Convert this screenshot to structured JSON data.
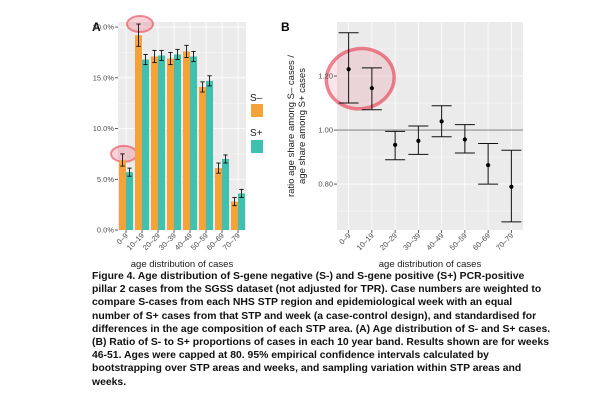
{
  "colors": {
    "s_negative": "#F5A23A",
    "s_positive": "#3FC1B0",
    "panel_bg": "#EBEBEB",
    "grid": "#FFFFFF",
    "point": "#000000",
    "reference_line": "#8C8C8C",
    "highlight": "#E8334A"
  },
  "chart_data": [
    {
      "panel": "A",
      "type": "bar",
      "xlabel": "age distribution of cases",
      "ylabel": "",
      "categories": [
        "0–9",
        "10–19",
        "20–29",
        "30–39",
        "40–49",
        "50–59",
        "60–69",
        "70–79"
      ],
      "ylim": [
        0,
        20.5
      ],
      "yticks": [
        0,
        5,
        10,
        15,
        20
      ],
      "ytick_labels": [
        "0.0%",
        "5.0%",
        "10.0%",
        "15.0%",
        "20.0%"
      ],
      "grid": true,
      "legend_position": "right",
      "series": [
        {
          "name": "S–",
          "color": "#F5A23A",
          "values": [
            6.9,
            19.2,
            17.1,
            16.9,
            17.6,
            14.1,
            6.1,
            2.8
          ],
          "lower": [
            6.3,
            18.1,
            16.5,
            16.3,
            17.0,
            13.6,
            5.6,
            2.4
          ],
          "upper": [
            7.5,
            20.3,
            17.7,
            17.5,
            18.2,
            14.6,
            6.6,
            3.2
          ]
        },
        {
          "name": "S+",
          "color": "#3FC1B0",
          "values": [
            5.7,
            16.8,
            17.2,
            17.3,
            17.1,
            14.7,
            7.0,
            3.6
          ],
          "lower": [
            5.3,
            16.3,
            16.7,
            16.8,
            16.6,
            14.2,
            6.6,
            3.2
          ],
          "upper": [
            6.1,
            17.3,
            17.7,
            17.8,
            17.6,
            15.2,
            7.4,
            4.0
          ]
        }
      ],
      "highlighted_categories": [
        "0–9",
        "10–19"
      ]
    },
    {
      "panel": "B",
      "type": "scatter",
      "xlabel": "age distribution of cases",
      "ylabel_lines": [
        "ratio age share among S– cases /",
        "age share among S+ cases"
      ],
      "categories": [
        "0–9",
        "10–19",
        "20–29",
        "30–39",
        "40–49",
        "50–59",
        "60–69",
        "70–79"
      ],
      "ylim": [
        0.63,
        1.4
      ],
      "yticks": [
        0.8,
        1.0,
        1.2
      ],
      "ytick_labels": [
        "0.80",
        "1.00",
        "1.20"
      ],
      "reference_line": 1.0,
      "grid": true,
      "values": [
        1.225,
        1.155,
        0.945,
        0.96,
        1.032,
        0.965,
        0.87,
        0.79
      ],
      "lower": [
        1.1,
        1.075,
        0.89,
        0.91,
        0.975,
        0.915,
        0.8,
        0.66
      ],
      "upper": [
        1.36,
        1.23,
        0.995,
        1.015,
        1.09,
        1.02,
        0.95,
        0.925
      ],
      "highlighted_categories": [
        "0–9",
        "10–19"
      ]
    }
  ],
  "caption": "Figure 4. Age distribution of S-gene negative (S-) and S-gene positive (S+) PCR-positive pillar 2 cases from the SGSS dataset (not adjusted for TPR). Case numbers are weighted to compare S-cases from each NHS STP region and epidemiological week with an equal number of S+ cases from that STP and week (a case-control design), and standardised for differences in the age composition of each STP area. (A) Age distribution of S- and S+ cases. (B) Ratio of S- to S+ proportions of cases in each 10 year band. Results shown are for weeks 46-51. Ages were capped at 80. 95% empirical confidence intervals calculated by bootstrapping over STP areas and weeks, and sampling variation within STP areas and weeks."
}
